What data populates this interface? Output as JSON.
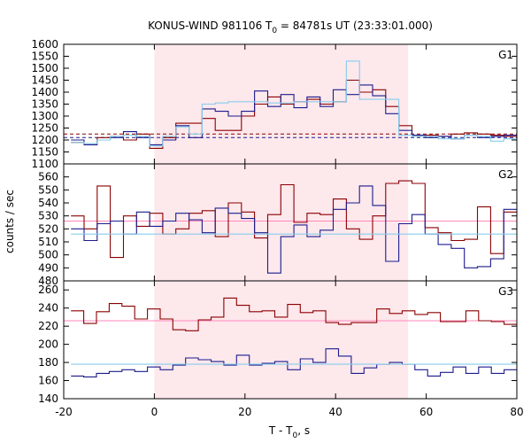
{
  "title": "KONUS-WIND 981106 T",
  "title_sub": "0",
  "title_rest": " = 84781s UT (23:33:01.000)",
  "xlabel": "T - T",
  "xlabel_sub": "0",
  "xlabel_rest": ", s",
  "ylabel": "counts / sec",
  "chart_data": {
    "type": "line",
    "step": true,
    "bin_width": 2.944,
    "bin_start": -18.4,
    "xlim": [
      -20,
      80
    ],
    "x_ticks": [
      -20,
      0,
      20,
      40,
      60,
      80
    ],
    "x_tick_labels": [
      "-20",
      "0",
      "20",
      "40",
      "60",
      "80"
    ],
    "highlight_interval": [
      0,
      56
    ],
    "highlight_color": "#fde8ec",
    "panels": [
      {
        "label": "G1",
        "ylim": [
          1100,
          1600
        ],
        "y_ticks": [
          1100,
          1150,
          1200,
          1250,
          1300,
          1350,
          1400,
          1450,
          1500,
          1550,
          1600
        ],
        "y_tick_labels": [
          "1100",
          "1150",
          "1200",
          "1250",
          "1300",
          "1350",
          "1400",
          "1450",
          "1500",
          "1550",
          "1600"
        ],
        "series": [
          {
            "color": "#8b0000",
            "values": [
              1190,
              1185,
              1210,
              1215,
              1200,
              1225,
              1165,
              1210,
              1270,
              1270,
              1290,
              1240,
              1240,
              1300,
              1350,
              1380,
              1350,
              1360,
              1370,
              1350,
              1360,
              1450,
              1400,
              1410,
              1340,
              1260,
              1220,
              1220,
              1215,
              1225,
              1230,
              1225,
              1220,
              1215
            ]
          },
          {
            "color": "#1c1c8c",
            "values": [
              1200,
              1180,
              1200,
              1210,
              1235,
              1210,
              1180,
              1200,
              1260,
              1210,
              1330,
              1320,
              1300,
              1320,
              1405,
              1340,
              1390,
              1335,
              1380,
              1340,
              1410,
              1390,
              1430,
              1385,
              1310,
              1240,
              1220,
              1210,
              1215,
              1205,
              1220,
              1210,
              1215,
              1220
            ]
          },
          {
            "color": "#87ceeb",
            "values": [
              1190,
              1185,
              1200,
              1215,
              1220,
              1215,
              1175,
              1215,
              1255,
              1225,
              1350,
              1355,
              1360,
              1360,
              1360,
              1355,
              1355,
              1360,
              1360,
              1360,
              1360,
              1530,
              1370,
              1370,
              1370,
              1220,
              1215,
              1215,
              1205,
              1205,
              1220,
              1215,
              1195,
              1205
            ]
          }
        ],
        "reference_lines": [
          {
            "value": 1225,
            "color": "#8b0000",
            "dashed": true
          },
          {
            "value": 1210,
            "color": "#1c1c8c",
            "dashed": true
          }
        ]
      },
      {
        "label": "G2",
        "ylim": [
          480,
          570
        ],
        "y_ticks": [
          480,
          490,
          500,
          510,
          520,
          530,
          540,
          550,
          560
        ],
        "y_tick_labels": [
          "480",
          "490",
          "500",
          "510",
          "520",
          "530",
          "540",
          "550",
          "560"
        ],
        "series": [
          {
            "color": "#8b0000",
            "values": [
              530,
              520,
              553,
              498,
              530,
              522,
              532,
              516,
              520,
              532,
              534,
              514,
              540,
              533,
              513,
              531,
              554,
              525,
              532,
              531,
              543,
              520,
              512,
              530,
              555,
              557,
              555,
              521,
              517,
              511,
              512,
              537,
              501,
              533
            ]
          },
          {
            "color": "#1c1c8c",
            "values": [
              520,
              511,
              524,
              526,
              516,
              533,
              522,
              526,
              532,
              527,
              517,
              536,
              532,
              528,
              517,
              486,
              514,
              523,
              514,
              519,
              535,
              540,
              553,
              538,
              495,
              524,
              531,
              516,
              508,
              505,
              490,
              491,
              497,
              535
            ]
          },
          {
            "color": "#87ceeb",
            "values": [
              516,
              516,
              516,
              516,
              516,
              516,
              516,
              516,
              516,
              516,
              516,
              516,
              516,
              516,
              516,
              516,
              516,
              516,
              516,
              516,
              516,
              516,
              516,
              516,
              516,
              516,
              516,
              516,
              516,
              516,
              516,
              516,
              516,
              516
            ]
          }
        ],
        "reference_lines": [
          {
            "value": 526,
            "color": "#ff88bb",
            "dashed": false
          }
        ]
      },
      {
        "label": "G3",
        "ylim": [
          140,
          270
        ],
        "y_ticks": [
          140,
          160,
          180,
          200,
          220,
          240,
          260
        ],
        "y_tick_labels": [
          "140",
          "160",
          "180",
          "200",
          "220",
          "240",
          "260"
        ],
        "series": [
          {
            "color": "#8b0000",
            "values": [
              237,
              223,
              236,
              245,
              242,
              228,
              239,
              228,
              216,
              215,
              227,
              230,
              251,
              243,
              236,
              237,
              230,
              244,
              235,
              237,
              224,
              222,
              224,
              224,
              239,
              234,
              237,
              233,
              235,
              225,
              225,
              237,
              226,
              225,
              222
            ]
          },
          {
            "color": "#1c1c8c",
            "values": [
              165,
              164,
              168,
              170,
              172,
              170,
              175,
              172,
              177,
              185,
              183,
              181,
              177,
              188,
              177,
              179,
              181,
              172,
              184,
              180,
              195,
              187,
              168,
              174,
              178,
              180,
              178,
              172,
              165,
              169,
              175,
              168,
              175,
              168,
              172
            ]
          },
          {
            "color": "#87ceeb",
            "values": [
              178,
              178,
              178,
              178,
              178,
              178,
              178,
              178,
              178,
              178,
              178,
              178,
              178,
              178,
              178,
              178,
              178,
              178,
              178,
              178,
              178,
              178,
              178,
              178,
              178,
              178,
              178,
              178,
              178,
              178,
              178,
              178,
              178,
              178,
              178
            ]
          }
        ],
        "reference_lines": [
          {
            "value": 226,
            "color": "#ff88bb",
            "dashed": false
          }
        ]
      }
    ]
  }
}
